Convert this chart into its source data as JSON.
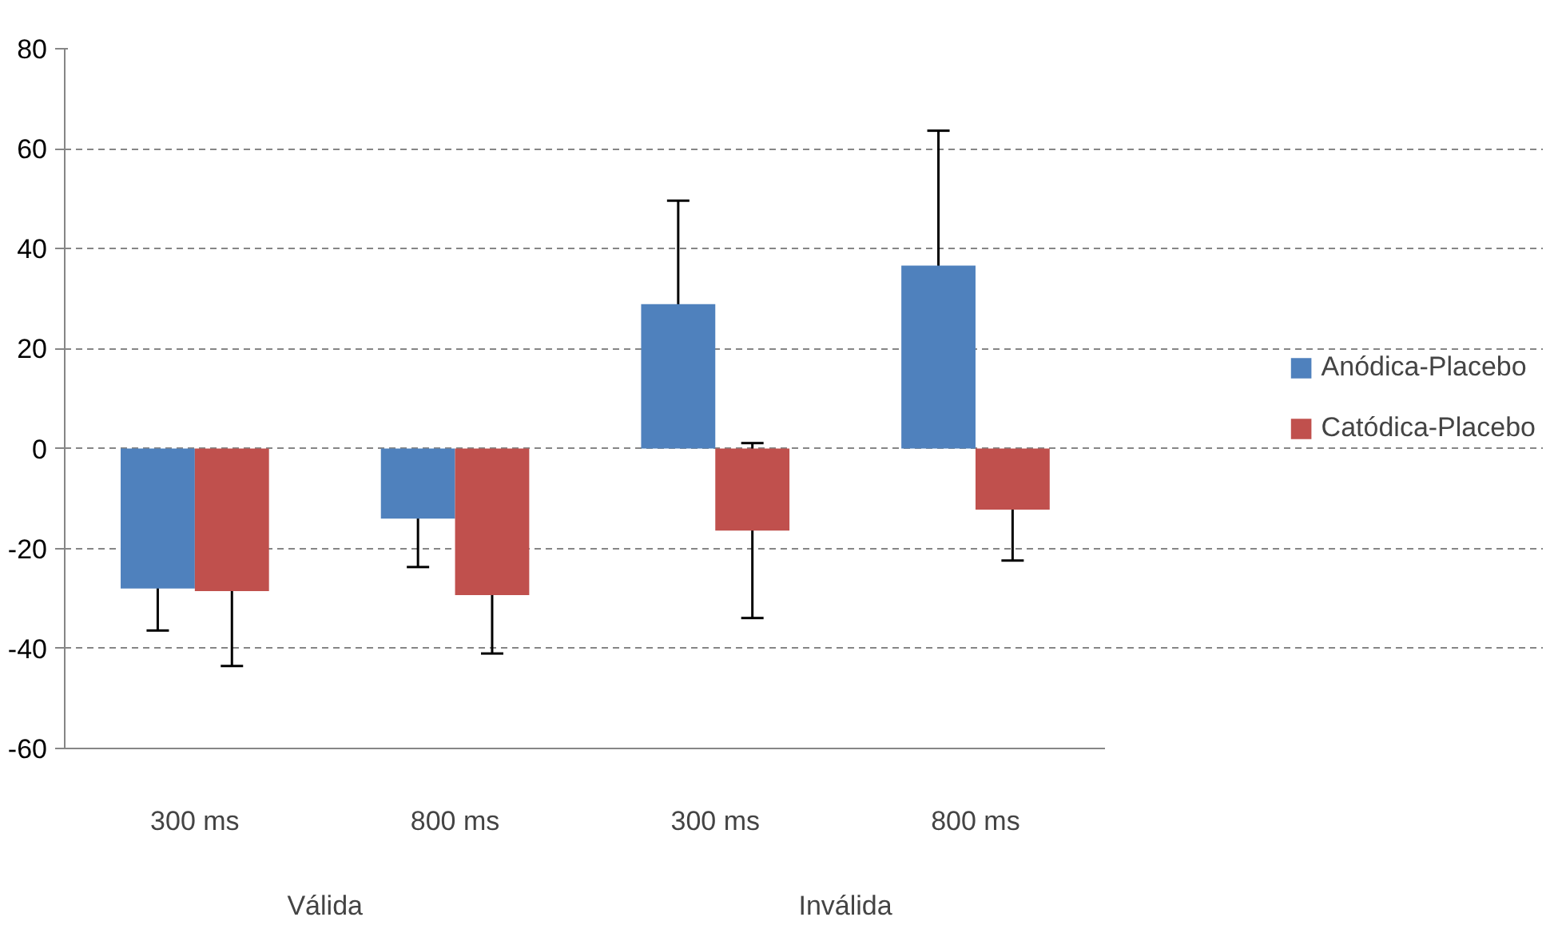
{
  "chart_data": {
    "type": "bar",
    "categories": [
      "300 ms",
      "800 ms",
      "300 ms",
      "800 ms"
    ],
    "series": [
      {
        "name": "Anódica-Placebo",
        "color": "#4f81bd",
        "values": [
          -28,
          -14,
          28.9,
          36.6
        ],
        "errors": [
          8.4,
          9.7,
          20.7,
          27
        ]
      },
      {
        "name": "Catódica-Placebo",
        "color": "#c0504d",
        "values": [
          -28.5,
          -29.3,
          -16.4,
          -12.2
        ],
        "errors": [
          15,
          11.7,
          17.5,
          10.2
        ]
      }
    ],
    "annotations": [
      "Válida",
      "Inválida"
    ],
    "ylim": [
      -60,
      80
    ],
    "yticks": [
      -60,
      -40,
      -20,
      0,
      20,
      40,
      60,
      80
    ],
    "grid": "y",
    "legend": "right"
  }
}
